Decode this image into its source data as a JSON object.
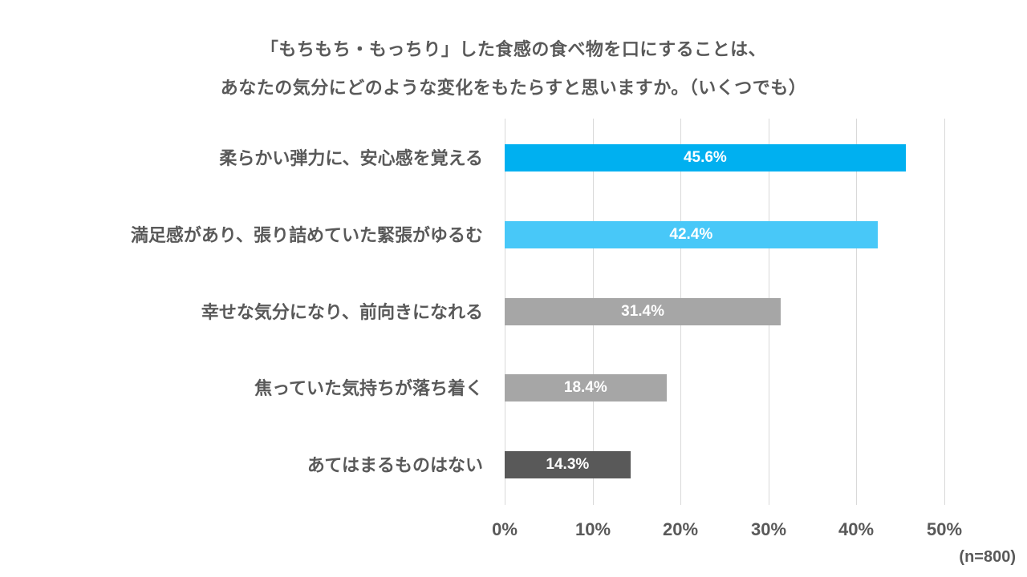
{
  "chart_data": {
    "type": "bar",
    "orientation": "horizontal",
    "title": "「もちもち・もっちり」した食感の食べ物を口にすることは、あなたの気分にどのような変化をもたらすと思いますか。（いくつでも）",
    "title_lines": [
      "「もちもち・もっちり」した食感の食べ物を口にすることは、",
      "あなたの気分にどのような変化をもたらすと思いますか。（いくつでも）"
    ],
    "categories": [
      "柔らかい弾力に、安心感を覚える",
      "満足感があり、張り詰めていた緊張がゆるむ",
      "幸せな気分になり、前向きになれる",
      "焦っていた気持ちが落ち着く",
      "あてはまるものはない"
    ],
    "values": [
      45.6,
      42.4,
      31.4,
      18.4,
      14.3
    ],
    "value_labels": [
      "45.6%",
      "42.4%",
      "31.4%",
      "18.4%",
      "14.3%"
    ],
    "bar_colors": [
      "#00b0f0",
      "#48c8f8",
      "#a6a6a6",
      "#a6a6a6",
      "#595959"
    ],
    "xlabel": "",
    "ylabel": "",
    "xlim": [
      0,
      50
    ],
    "x_ticks": [
      "0%",
      "10%",
      "20%",
      "30%",
      "40%",
      "50%"
    ],
    "grid": true,
    "legend": null,
    "annotations": [
      "(n=800)"
    ]
  }
}
